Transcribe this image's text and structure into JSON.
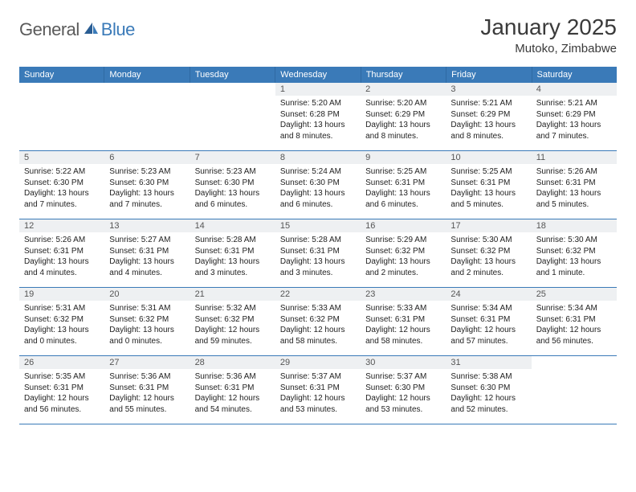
{
  "colors": {
    "header_bg": "#3a7ab8",
    "header_text": "#ffffff",
    "daynum_bg": "#eef0f2",
    "row_border": "#3a7ab8",
    "body_text": "#222222",
    "title_text": "#3a3a3a",
    "logo_gray": "#5a5a5a",
    "logo_blue": "#3a7ab8"
  },
  "logo": {
    "part1": "General",
    "part2": "Blue"
  },
  "title": "January 2025",
  "location": "Mutoko, Zimbabwe",
  "day_names": [
    "Sunday",
    "Monday",
    "Tuesday",
    "Wednesday",
    "Thursday",
    "Friday",
    "Saturday"
  ],
  "weeks": [
    [
      {
        "num": "",
        "lines": [
          "",
          "",
          "",
          ""
        ]
      },
      {
        "num": "",
        "lines": [
          "",
          "",
          "",
          ""
        ]
      },
      {
        "num": "",
        "lines": [
          "",
          "",
          "",
          ""
        ]
      },
      {
        "num": "1",
        "lines": [
          "Sunrise: 5:20 AM",
          "Sunset: 6:28 PM",
          "Daylight: 13 hours",
          "and 8 minutes."
        ]
      },
      {
        "num": "2",
        "lines": [
          "Sunrise: 5:20 AM",
          "Sunset: 6:29 PM",
          "Daylight: 13 hours",
          "and 8 minutes."
        ]
      },
      {
        "num": "3",
        "lines": [
          "Sunrise: 5:21 AM",
          "Sunset: 6:29 PM",
          "Daylight: 13 hours",
          "and 8 minutes."
        ]
      },
      {
        "num": "4",
        "lines": [
          "Sunrise: 5:21 AM",
          "Sunset: 6:29 PM",
          "Daylight: 13 hours",
          "and 7 minutes."
        ]
      }
    ],
    [
      {
        "num": "5",
        "lines": [
          "Sunrise: 5:22 AM",
          "Sunset: 6:30 PM",
          "Daylight: 13 hours",
          "and 7 minutes."
        ]
      },
      {
        "num": "6",
        "lines": [
          "Sunrise: 5:23 AM",
          "Sunset: 6:30 PM",
          "Daylight: 13 hours",
          "and 7 minutes."
        ]
      },
      {
        "num": "7",
        "lines": [
          "Sunrise: 5:23 AM",
          "Sunset: 6:30 PM",
          "Daylight: 13 hours",
          "and 6 minutes."
        ]
      },
      {
        "num": "8",
        "lines": [
          "Sunrise: 5:24 AM",
          "Sunset: 6:30 PM",
          "Daylight: 13 hours",
          "and 6 minutes."
        ]
      },
      {
        "num": "9",
        "lines": [
          "Sunrise: 5:25 AM",
          "Sunset: 6:31 PM",
          "Daylight: 13 hours",
          "and 6 minutes."
        ]
      },
      {
        "num": "10",
        "lines": [
          "Sunrise: 5:25 AM",
          "Sunset: 6:31 PM",
          "Daylight: 13 hours",
          "and 5 minutes."
        ]
      },
      {
        "num": "11",
        "lines": [
          "Sunrise: 5:26 AM",
          "Sunset: 6:31 PM",
          "Daylight: 13 hours",
          "and 5 minutes."
        ]
      }
    ],
    [
      {
        "num": "12",
        "lines": [
          "Sunrise: 5:26 AM",
          "Sunset: 6:31 PM",
          "Daylight: 13 hours",
          "and 4 minutes."
        ]
      },
      {
        "num": "13",
        "lines": [
          "Sunrise: 5:27 AM",
          "Sunset: 6:31 PM",
          "Daylight: 13 hours",
          "and 4 minutes."
        ]
      },
      {
        "num": "14",
        "lines": [
          "Sunrise: 5:28 AM",
          "Sunset: 6:31 PM",
          "Daylight: 13 hours",
          "and 3 minutes."
        ]
      },
      {
        "num": "15",
        "lines": [
          "Sunrise: 5:28 AM",
          "Sunset: 6:31 PM",
          "Daylight: 13 hours",
          "and 3 minutes."
        ]
      },
      {
        "num": "16",
        "lines": [
          "Sunrise: 5:29 AM",
          "Sunset: 6:32 PM",
          "Daylight: 13 hours",
          "and 2 minutes."
        ]
      },
      {
        "num": "17",
        "lines": [
          "Sunrise: 5:30 AM",
          "Sunset: 6:32 PM",
          "Daylight: 13 hours",
          "and 2 minutes."
        ]
      },
      {
        "num": "18",
        "lines": [
          "Sunrise: 5:30 AM",
          "Sunset: 6:32 PM",
          "Daylight: 13 hours",
          "and 1 minute."
        ]
      }
    ],
    [
      {
        "num": "19",
        "lines": [
          "Sunrise: 5:31 AM",
          "Sunset: 6:32 PM",
          "Daylight: 13 hours",
          "and 0 minutes."
        ]
      },
      {
        "num": "20",
        "lines": [
          "Sunrise: 5:31 AM",
          "Sunset: 6:32 PM",
          "Daylight: 13 hours",
          "and 0 minutes."
        ]
      },
      {
        "num": "21",
        "lines": [
          "Sunrise: 5:32 AM",
          "Sunset: 6:32 PM",
          "Daylight: 12 hours",
          "and 59 minutes."
        ]
      },
      {
        "num": "22",
        "lines": [
          "Sunrise: 5:33 AM",
          "Sunset: 6:32 PM",
          "Daylight: 12 hours",
          "and 58 minutes."
        ]
      },
      {
        "num": "23",
        "lines": [
          "Sunrise: 5:33 AM",
          "Sunset: 6:31 PM",
          "Daylight: 12 hours",
          "and 58 minutes."
        ]
      },
      {
        "num": "24",
        "lines": [
          "Sunrise: 5:34 AM",
          "Sunset: 6:31 PM",
          "Daylight: 12 hours",
          "and 57 minutes."
        ]
      },
      {
        "num": "25",
        "lines": [
          "Sunrise: 5:34 AM",
          "Sunset: 6:31 PM",
          "Daylight: 12 hours",
          "and 56 minutes."
        ]
      }
    ],
    [
      {
        "num": "26",
        "lines": [
          "Sunrise: 5:35 AM",
          "Sunset: 6:31 PM",
          "Daylight: 12 hours",
          "and 56 minutes."
        ]
      },
      {
        "num": "27",
        "lines": [
          "Sunrise: 5:36 AM",
          "Sunset: 6:31 PM",
          "Daylight: 12 hours",
          "and 55 minutes."
        ]
      },
      {
        "num": "28",
        "lines": [
          "Sunrise: 5:36 AM",
          "Sunset: 6:31 PM",
          "Daylight: 12 hours",
          "and 54 minutes."
        ]
      },
      {
        "num": "29",
        "lines": [
          "Sunrise: 5:37 AM",
          "Sunset: 6:31 PM",
          "Daylight: 12 hours",
          "and 53 minutes."
        ]
      },
      {
        "num": "30",
        "lines": [
          "Sunrise: 5:37 AM",
          "Sunset: 6:30 PM",
          "Daylight: 12 hours",
          "and 53 minutes."
        ]
      },
      {
        "num": "31",
        "lines": [
          "Sunrise: 5:38 AM",
          "Sunset: 6:30 PM",
          "Daylight: 12 hours",
          "and 52 minutes."
        ]
      },
      {
        "num": "",
        "lines": [
          "",
          "",
          "",
          ""
        ]
      }
    ]
  ]
}
